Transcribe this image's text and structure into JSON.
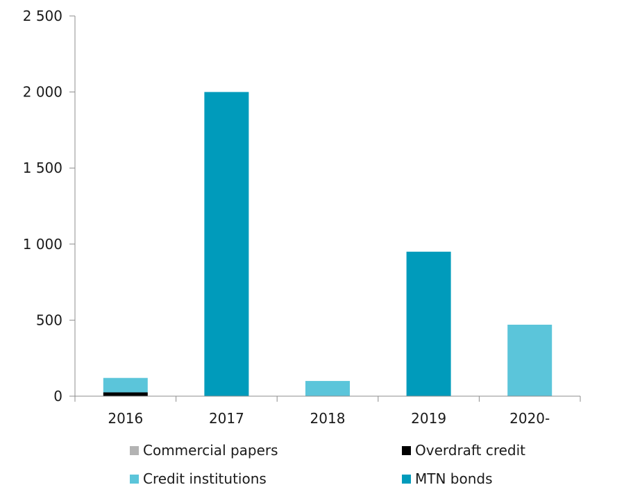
{
  "chart_data": {
    "type": "bar",
    "stacked": true,
    "title": "",
    "xlabel": "",
    "ylabel": "",
    "categories": [
      "2016",
      "2017",
      "2018",
      "2019",
      "2020-"
    ],
    "ylim": [
      0,
      2500
    ],
    "yticks": [
      0,
      500,
      1000,
      1500,
      2000,
      2500
    ],
    "ytick_labels": [
      "0",
      "500",
      "1 000",
      "1 500",
      "2 000",
      "2 500"
    ],
    "grid": false,
    "legend_position": "bottom",
    "series": [
      {
        "name": "Commercial papers",
        "color": "#b3b3b3",
        "values": [
          0,
          0,
          0,
          0,
          0
        ]
      },
      {
        "name": "Overdraft credit",
        "color": "#000000",
        "values": [
          25,
          0,
          0,
          0,
          0
        ]
      },
      {
        "name": "Credit institutions",
        "color": "#5bc5da",
        "values": [
          95,
          0,
          100,
          0,
          470
        ]
      },
      {
        "name": "MTN bonds",
        "color": "#009bbb",
        "values": [
          0,
          2000,
          0,
          950,
          0
        ]
      }
    ]
  }
}
